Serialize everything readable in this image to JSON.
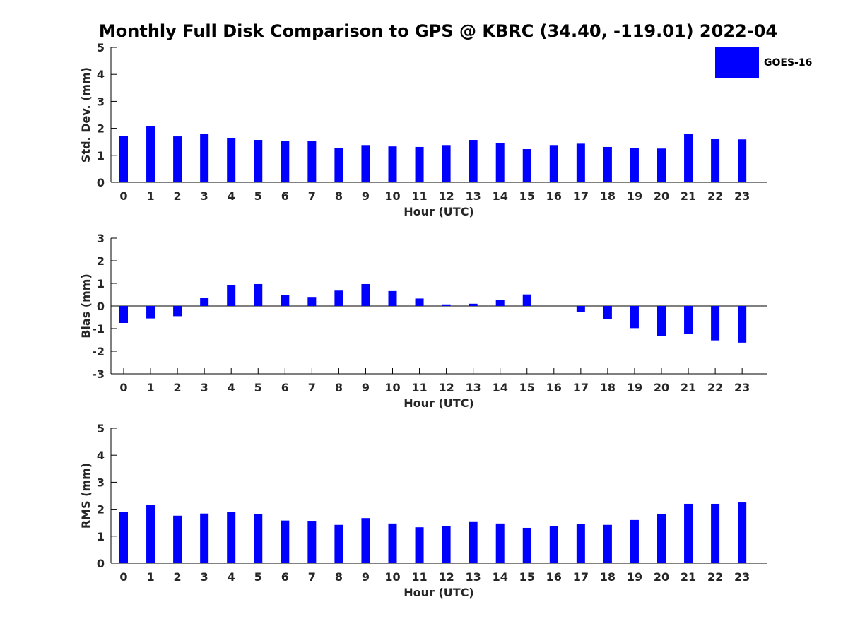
{
  "colors": {
    "bar": "#0000ff",
    "axis": "#000000",
    "text": "#262626"
  },
  "title": "Monthly Full Disk Comparison to GPS @ KBRC (34.40, -119.01) 2022-04",
  "legend": {
    "label": "GOES-16",
    "color": "#0000ff"
  },
  "chart_data": [
    {
      "type": "bar",
      "title": "Monthly Full Disk Comparison to GPS @ KBRC (34.40, -119.01) 2022-04",
      "xlabel": "Hour (UTC)",
      "ylabel": "Std. Dev. (mm)",
      "ylim": [
        0,
        5
      ],
      "yticks": [
        0,
        1,
        2,
        3,
        4,
        5
      ],
      "categories": [
        "0",
        "1",
        "2",
        "3",
        "4",
        "5",
        "6",
        "7",
        "8",
        "9",
        "10",
        "11",
        "12",
        "13",
        "14",
        "15",
        "16",
        "17",
        "18",
        "19",
        "20",
        "21",
        "22",
        "23"
      ],
      "series": [
        {
          "name": "GOES-16",
          "values": [
            1.72,
            2.08,
            1.7,
            1.8,
            1.65,
            1.57,
            1.52,
            1.54,
            1.26,
            1.38,
            1.33,
            1.31,
            1.38,
            1.57,
            1.46,
            1.23,
            1.38,
            1.43,
            1.31,
            1.28,
            1.25,
            1.8,
            1.6,
            1.59
          ]
        }
      ]
    },
    {
      "type": "bar",
      "xlabel": "Hour (UTC)",
      "ylabel": "Bias (mm)",
      "ylim": [
        -3,
        3
      ],
      "yticks": [
        -3,
        -2,
        -1,
        0,
        1,
        2,
        3
      ],
      "categories": [
        "0",
        "1",
        "2",
        "3",
        "4",
        "5",
        "6",
        "7",
        "8",
        "9",
        "10",
        "11",
        "12",
        "13",
        "14",
        "15",
        "16",
        "17",
        "18",
        "19",
        "20",
        "21",
        "22",
        "23"
      ],
      "series": [
        {
          "name": "GOES-16",
          "values": [
            -0.75,
            -0.55,
            -0.45,
            0.35,
            0.92,
            0.97,
            0.47,
            0.4,
            0.68,
            0.97,
            0.66,
            0.33,
            0.07,
            0.1,
            0.27,
            0.51,
            0.0,
            -0.28,
            -0.57,
            -0.98,
            -1.33,
            -1.25,
            -1.52,
            -1.62
          ]
        }
      ]
    },
    {
      "type": "bar",
      "xlabel": "Hour (UTC)",
      "ylabel": "RMS (mm)",
      "ylim": [
        0,
        5
      ],
      "yticks": [
        0,
        1,
        2,
        3,
        4,
        5
      ],
      "categories": [
        "0",
        "1",
        "2",
        "3",
        "4",
        "5",
        "6",
        "7",
        "8",
        "9",
        "10",
        "11",
        "12",
        "13",
        "14",
        "15",
        "16",
        "17",
        "18",
        "19",
        "20",
        "21",
        "22",
        "23"
      ],
      "series": [
        {
          "name": "GOES-16",
          "values": [
            1.89,
            2.15,
            1.76,
            1.84,
            1.89,
            1.81,
            1.58,
            1.57,
            1.42,
            1.67,
            1.47,
            1.33,
            1.37,
            1.55,
            1.47,
            1.31,
            1.37,
            1.45,
            1.42,
            1.6,
            1.81,
            2.2,
            2.2,
            2.25
          ]
        }
      ]
    }
  ]
}
